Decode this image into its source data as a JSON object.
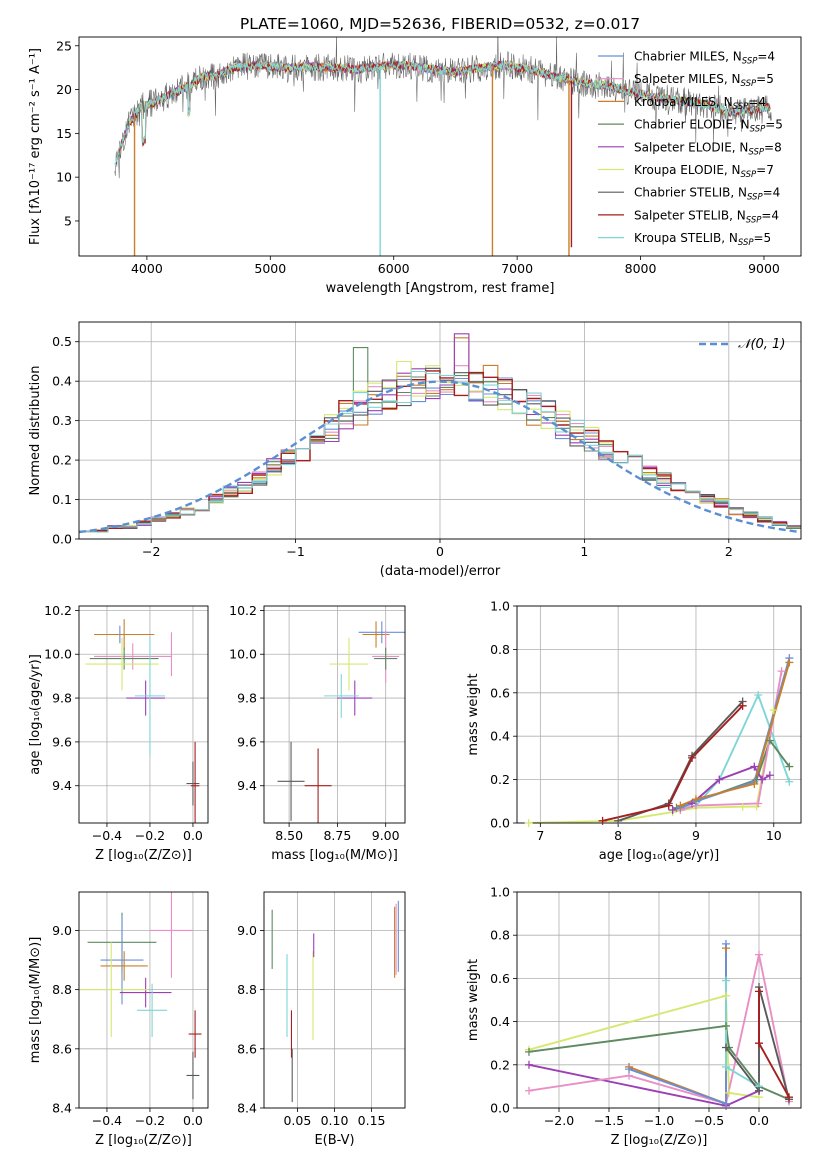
{
  "colors": {
    "Chabrier MILES": "#6b8fd6",
    "Salpeter MILES": "#e98fc5",
    "Kroupa MILES": "#c97f2a",
    "Chabrier ELODIE": "#5e8a62",
    "Salpeter ELODIE": "#9b3fb5",
    "Kroupa ELODIE": "#d6e870",
    "Chabrier STELIB": "#5a5a5a",
    "Salpeter STELIB": "#a51f1f",
    "Kroupa STELIB": "#7fd6d6",
    "normal_line": "#5b8fd4",
    "grid": "#b0b0b0"
  },
  "chart_data": [
    {
      "id": "spectrum",
      "type": "line",
      "title": "PLATE=1060, MJD=52636, FIBERID=0532, z=0.017",
      "xlabel": "wavelength [Angstrom, rest frame]",
      "ylabel": "Flux [fλ10⁻¹⁷ erg cm⁻² s⁻¹ A⁻¹]",
      "xlim": [
        3450,
        9300
      ],
      "ylim": [
        1,
        26
      ],
      "xticks": [
        "4000",
        "5000",
        "6000",
        "7000",
        "8000",
        "9000"
      ],
      "xtick_values": [
        4000,
        5000,
        6000,
        7000,
        8000,
        9000
      ],
      "yticks": [
        "5",
        "10",
        "15",
        "20",
        "25"
      ],
      "ytick_values": [
        5,
        10,
        15,
        20,
        25
      ],
      "grid": false,
      "legend_position": "top-right",
      "legend": [
        {
          "label": "Chabrier MILES, N",
          "sub": "SSP",
          "suffix": "=4",
          "color": "#6b8fd6"
        },
        {
          "label": "Salpeter MILES, N",
          "sub": "SSP",
          "suffix": "=5",
          "color": "#e98fc5"
        },
        {
          "label": "Kroupa MILES, N",
          "sub": "SSP",
          "suffix": "=4",
          "color": "#c97f2a"
        },
        {
          "label": "Chabrier ELODIE, N",
          "sub": "SSP",
          "suffix": "=5",
          "color": "#5e8a62"
        },
        {
          "label": "Salpeter ELODIE, N",
          "sub": "SSP",
          "suffix": "=8",
          "color": "#9b3fb5"
        },
        {
          "label": "Kroupa ELODIE, N",
          "sub": "SSP",
          "suffix": "=7",
          "color": "#d6e870"
        },
        {
          "label": "Chabrier STELIB, N",
          "sub": "SSP",
          "suffix": "=4",
          "color": "#5a5a5a"
        },
        {
          "label": "Salpeter STELIB, N",
          "sub": "SSP",
          "suffix": "=4",
          "color": "#a51f1f"
        },
        {
          "label": "Kroupa STELIB, N",
          "sub": "SSP",
          "suffix": "=5",
          "color": "#7fd6d6"
        }
      ],
      "continuum": {
        "x": [
          3730,
          3800,
          3850,
          3950,
          4050,
          4200,
          4350,
          4450,
          4550,
          4700,
          4900,
          5100,
          5300,
          5500,
          5700,
          5900,
          6100,
          6300,
          6500,
          6700,
          6900,
          7100,
          7300,
          7500,
          7700,
          7900,
          8100,
          8300,
          8500,
          8700,
          8900,
          9050
        ],
        "y": [
          11,
          14,
          16,
          18,
          18.5,
          19.5,
          20.5,
          21.5,
          21.5,
          22.5,
          22.8,
          22.5,
          22.6,
          22.5,
          22.3,
          22.7,
          22.8,
          22.3,
          22,
          22.5,
          22.8,
          22.3,
          21.5,
          20.8,
          20.5,
          19.8,
          19.2,
          18.8,
          18.4,
          17.5,
          17.6,
          18
        ]
      },
      "dips": [
        {
          "series": "Kroupa MILES",
          "x": 3900,
          "to": 1
        },
        {
          "series": "Kroupa MILES",
          "x": 6800,
          "to": 1
        },
        {
          "series": "Kroupa MILES",
          "x": 7420,
          "to": 1
        },
        {
          "series": "Kroupa STELIB",
          "x": 5890,
          "to": 1
        },
        {
          "series": "Salpeter STELIB",
          "x": 7440,
          "to": 2
        }
      ]
    },
    {
      "id": "residuals",
      "type": "line",
      "xlabel": "(data-model)/error",
      "ylabel": "Normed distribution",
      "xlim": [
        -2.5,
        2.5
      ],
      "ylim": [
        0,
        0.55
      ],
      "xticks": [
        "−2",
        "−1",
        "0",
        "1",
        "2"
      ],
      "xtick_values": [
        -2,
        -1,
        0,
        1,
        2
      ],
      "yticks": [
        "0.0",
        "0.1",
        "0.2",
        "0.3",
        "0.4",
        "0.5"
      ],
      "ytick_values": [
        0,
        0.1,
        0.2,
        0.3,
        0.4,
        0.5
      ],
      "grid": true,
      "legend_position": "top-right",
      "legend_label": "𝒩(0, 1)",
      "bin_edges_start": -2.5,
      "bin_width": 0.1,
      "base_hist": [
        0.02,
        0.02,
        0.03,
        0.03,
        0.04,
        0.05,
        0.06,
        0.07,
        0.08,
        0.1,
        0.12,
        0.13,
        0.15,
        0.18,
        0.2,
        0.22,
        0.25,
        0.28,
        0.31,
        0.33,
        0.35,
        0.36,
        0.38,
        0.39,
        0.4,
        0.4,
        0.4,
        0.39,
        0.38,
        0.37,
        0.35,
        0.33,
        0.31,
        0.29,
        0.27,
        0.25,
        0.23,
        0.21,
        0.19,
        0.17,
        0.15,
        0.13,
        0.11,
        0.1,
        0.09,
        0.07,
        0.06,
        0.05,
        0.04,
        0.03
      ],
      "spikes": [
        {
          "series": "Chabrier ELODIE",
          "x": -0.6,
          "y": 0.485
        },
        {
          "series": "Salpeter ELODIE",
          "x": 0.1,
          "y": 0.52
        },
        {
          "series": "Kroupa MILES",
          "x": 0.1,
          "y": 0.51
        },
        {
          "series": "Kroupa MILES",
          "x": 0.3,
          "y": 0.44
        },
        {
          "series": "Kroupa ELODIE",
          "x": -0.3,
          "y": 0.45
        }
      ]
    },
    {
      "id": "age_vs_Z",
      "type": "scatter",
      "xlabel": "Z [log₁₀(Z/Z⊙)]",
      "ylabel": "age  [log₁₀(age/yr)]",
      "xlim": [
        -0.53,
        0.07
      ],
      "ylim": [
        9.23,
        10.22
      ],
      "xticks": [
        "−0.4",
        "−0.2",
        "0.0"
      ],
      "xtick_values": [
        -0.4,
        -0.2,
        0.0
      ],
      "yticks": [
        "9.4",
        "9.6",
        "9.8",
        "10.0",
        "10.2"
      ],
      "ytick_values": [
        9.4,
        9.6,
        9.8,
        10.0,
        10.2
      ],
      "grid": true,
      "points": [
        {
          "series": "Chabrier MILES",
          "x": -0.34,
          "y": 10.09,
          "xe": 0.09,
          "ye": 0.04
        },
        {
          "series": "Kroupa MILES",
          "x": -0.32,
          "y": 10.09,
          "xe": 0.14,
          "ye": 0.07
        },
        {
          "series": "Salpeter MILES",
          "x": -0.28,
          "y": 9.99,
          "xe": 0.18,
          "ye": 0.06
        },
        {
          "series": "Chabrier ELODIE",
          "x": -0.32,
          "y": 9.98,
          "xe": 0.16,
          "ye": 0.05
        },
        {
          "series": "Kroupa ELODIE",
          "x": -0.33,
          "y": 9.955,
          "xe": 0.17,
          "ye": 0.12
        },
        {
          "series": "Salpeter ELODIE",
          "x": -0.22,
          "y": 9.8,
          "xe": 0.09,
          "ye": 0.08
        },
        {
          "series": "Kroupa STELIB",
          "x": -0.2,
          "y": 9.81,
          "xe": 0.07,
          "ye": 0.27
        },
        {
          "series": "Chabrier STELIB",
          "x": 0.0,
          "y": 9.41,
          "xe": 0.03,
          "ye": 0.1
        },
        {
          "series": "Salpeter STELIB",
          "x": 0.01,
          "y": 9.4,
          "xe": 0.02,
          "ye": 0.2
        },
        {
          "series": "Salpeter MILES",
          "x": -0.1,
          "y": 10.0,
          "xe": 0.0,
          "ye": 0.1
        }
      ]
    },
    {
      "id": "age_vs_mass",
      "type": "scatter",
      "xlabel": "mass [log₁₀(M/M⊙)]",
      "ylabel": "",
      "xlim": [
        8.37,
        9.1
      ],
      "ylim": [
        9.23,
        10.22
      ],
      "xticks": [
        "8.50",
        "8.75",
        "9.00"
      ],
      "xtick_values": [
        8.5,
        8.75,
        9.0
      ],
      "yticks": [
        "9.4",
        "9.6",
        "9.8",
        "10.0",
        "10.2"
      ],
      "ytick_values": [
        9.4,
        9.6,
        9.8,
        10.0,
        10.2
      ],
      "grid": true,
      "points": [
        {
          "series": "Chabrier MILES",
          "x": 8.98,
          "y": 10.1,
          "xe": 0.12,
          "ye": 0.05
        },
        {
          "series": "Kroupa MILES",
          "x": 8.95,
          "y": 10.09,
          "xe": 0.07,
          "ye": 0.06
        },
        {
          "series": "Salpeter MILES",
          "x": 9.0,
          "y": 9.99,
          "xe": 0.07,
          "ye": 0.12
        },
        {
          "series": "Chabrier ELODIE",
          "x": 9.0,
          "y": 9.98,
          "xe": 0.06,
          "ye": 0.05
        },
        {
          "series": "Kroupa ELODIE",
          "x": 8.81,
          "y": 9.955,
          "xe": 0.1,
          "ye": 0.12
        },
        {
          "series": "Salpeter ELODIE",
          "x": 8.84,
          "y": 9.8,
          "xe": 0.09,
          "ye": 0.08
        },
        {
          "series": "Kroupa STELIB",
          "x": 8.77,
          "y": 9.81,
          "xe": 0.09,
          "ye": 0.1
        },
        {
          "series": "Chabrier STELIB",
          "x": 8.51,
          "y": 9.42,
          "xe": 0.07,
          "ye": 0.18
        },
        {
          "series": "Salpeter STELIB",
          "x": 8.65,
          "y": 9.4,
          "xe": 0.07,
          "ye": 0.17
        }
      ]
    },
    {
      "id": "weight_vs_age",
      "type": "line",
      "xlabel": "age  [log₁₀(age/yr)]",
      "ylabel": "mass weight",
      "xlim": [
        6.7,
        10.35
      ],
      "ylim": [
        0,
        1
      ],
      "xticks": [
        "7",
        "8",
        "9",
        "10"
      ],
      "xtick_values": [
        7,
        8,
        9,
        10
      ],
      "yticks": [
        "0.0",
        "0.2",
        "0.4",
        "0.6",
        "0.8",
        "1.0"
      ],
      "ytick_values": [
        0,
        0.2,
        0.4,
        0.6,
        0.8,
        1.0
      ],
      "grid": true,
      "series": [
        {
          "name": "Kroupa ELODIE",
          "x": [
            6.85,
            8.0,
            8.7,
            9.0,
            9.6,
            9.78,
            10.0
          ],
          "y": [
            0.0,
            0.01,
            0.05,
            0.07,
            0.075,
            0.076,
            0.52
          ]
        },
        {
          "name": "Kroupa STELIB",
          "x": [
            8.7,
            9.0,
            9.3,
            9.8,
            10.2
          ],
          "y": [
            0.06,
            0.08,
            0.2,
            0.59,
            0.19
          ]
        },
        {
          "name": "Chabrier ELODIE",
          "x": [
            8.75,
            9.0,
            9.78,
            9.95,
            10.2
          ],
          "y": [
            0.07,
            0.1,
            0.2,
            0.38,
            0.26
          ]
        },
        {
          "name": "Salpeter ELODIE",
          "x": [
            8.7,
            8.95,
            9.3,
            9.75,
            9.85,
            9.95
          ],
          "y": [
            0.06,
            0.09,
            0.2,
            0.26,
            0.2,
            0.22
          ]
        },
        {
          "name": "Salpeter MILES",
          "x": [
            8.8,
            9.0,
            9.8,
            10.1
          ],
          "y": [
            0.06,
            0.08,
            0.09,
            0.7
          ]
        },
        {
          "name": "Chabrier MILES",
          "x": [
            8.8,
            9.0,
            9.75,
            10.2
          ],
          "y": [
            0.07,
            0.1,
            0.19,
            0.76
          ]
        },
        {
          "name": "Kroupa MILES",
          "x": [
            8.8,
            9.0,
            9.75,
            10.2
          ],
          "y": [
            0.08,
            0.11,
            0.18,
            0.74
          ]
        },
        {
          "name": "Chabrier STELIB",
          "x": [
            8.0,
            8.65,
            8.95,
            9.6
          ],
          "y": [
            0.01,
            0.09,
            0.31,
            0.56
          ]
        },
        {
          "name": "Salpeter STELIB",
          "x": [
            7.8,
            8.65,
            8.95,
            9.6
          ],
          "y": [
            0.01,
            0.08,
            0.3,
            0.54
          ]
        }
      ]
    },
    {
      "id": "mass_vs_Z",
      "type": "scatter",
      "xlabel": "Z [log₁₀(Z/Z⊙)]",
      "ylabel": "mass [log₁₀(M/M⊙)]",
      "xlim": [
        -0.53,
        0.07
      ],
      "ylim": [
        8.4,
        9.13
      ],
      "xticks": [
        "−0.4",
        "−0.2",
        "0.0"
      ],
      "xtick_values": [
        -0.4,
        -0.2,
        0.0
      ],
      "yticks": [
        "8.4",
        "8.6",
        "8.8",
        "9.0"
      ],
      "ytick_values": [
        8.4,
        8.6,
        8.8,
        9.0
      ],
      "grid": true,
      "points": [
        {
          "series": "Chabrier ELODIE",
          "x": -0.33,
          "y": 8.96,
          "xe": 0.16,
          "ye": 0.1
        },
        {
          "series": "Salpeter MILES",
          "x": -0.1,
          "y": 9.0,
          "xe": 0.1,
          "ye": 0.16
        },
        {
          "series": "Chabrier MILES",
          "x": -0.33,
          "y": 8.9,
          "xe": 0.1,
          "ye": 0.15
        },
        {
          "series": "Kroupa MILES",
          "x": -0.32,
          "y": 8.88,
          "xe": 0.11,
          "ye": 0.05
        },
        {
          "series": "Salpeter ELODIE",
          "x": -0.22,
          "y": 8.79,
          "xe": 0.12,
          "ye": 0.05
        },
        {
          "series": "Kroupa ELODIE",
          "x": -0.38,
          "y": 8.8,
          "xe": 0.17,
          "ye": 0.16
        },
        {
          "series": "Kroupa STELIB",
          "x": -0.19,
          "y": 8.73,
          "xe": 0.07,
          "ye": 0.09
        },
        {
          "series": "Salpeter STELIB",
          "x": 0.01,
          "y": 8.65,
          "xe": 0.03,
          "ye": 0.08
        },
        {
          "series": "Chabrier STELIB",
          "x": 0.0,
          "y": 8.51,
          "xe": 0.03,
          "ye": 0.08
        }
      ]
    },
    {
      "id": "mass_vs_ebv",
      "type": "scatter",
      "xlabel": "E(B-V)",
      "ylabel": "",
      "xlim": [
        0.005,
        0.195
      ],
      "ylim": [
        8.4,
        9.13
      ],
      "xticks": [
        "0.05",
        "0.10",
        "0.15"
      ],
      "xtick_values": [
        0.05,
        0.1,
        0.15
      ],
      "yticks": [
        "8.4",
        "8.6",
        "8.8",
        "9.0"
      ],
      "ytick_values": [
        8.4,
        8.6,
        8.8,
        9.0
      ],
      "grid": true,
      "points": [
        {
          "series": "Chabrier ELODIE",
          "x": 0.016,
          "y": 8.97,
          "xe": 0.0,
          "ye": 0.1
        },
        {
          "series": "Kroupa STELIB",
          "x": 0.036,
          "y": 8.78,
          "xe": 0.0,
          "ye": 0.14
        },
        {
          "series": "Salpeter STELIB",
          "x": 0.042,
          "y": 8.65,
          "xe": 0.0,
          "ye": 0.08
        },
        {
          "series": "Chabrier STELIB",
          "x": 0.043,
          "y": 8.51,
          "xe": 0.0,
          "ye": 0.09
        },
        {
          "series": "Kroupa ELODIE",
          "x": 0.071,
          "y": 8.78,
          "xe": 0.0,
          "ye": 0.15
        },
        {
          "series": "Salpeter ELODIE",
          "x": 0.072,
          "y": 8.95,
          "xe": 0.0,
          "ye": 0.04
        },
        {
          "series": "Kroupa MILES",
          "x": 0.181,
          "y": 8.96,
          "xe": 0.0,
          "ye": 0.12
        },
        {
          "series": "Salpeter MILES",
          "x": 0.183,
          "y": 8.97,
          "xe": 0.0,
          "ye": 0.12
        },
        {
          "series": "Chabrier MILES",
          "x": 0.186,
          "y": 8.98,
          "xe": 0.0,
          "ye": 0.12
        }
      ]
    },
    {
      "id": "weight_vs_Z",
      "type": "line",
      "xlabel": "Z [log₁₀(Z/Z⊙)]",
      "ylabel": "mass weight",
      "xlim": [
        -2.42,
        0.42
      ],
      "ylim": [
        0,
        1
      ],
      "xticks": [
        "−2.0",
        "−1.5",
        "−1.0",
        "−0.5",
        "0.0"
      ],
      "xtick_values": [
        -2,
        -1.5,
        -1,
        -0.5,
        0
      ],
      "yticks": [
        "0.0",
        "0.2",
        "0.4",
        "0.6",
        "0.8",
        "1.0"
      ],
      "ytick_values": [
        0,
        0.2,
        0.4,
        0.6,
        0.8,
        1.0
      ],
      "grid": true,
      "series": [
        {
          "name": "Kroupa ELODIE",
          "x": [
            -2.3,
            -0.33,
            -0.3,
            0.0
          ],
          "y": [
            0.27,
            0.52,
            0.07,
            0.05
          ]
        },
        {
          "name": "Chabrier ELODIE",
          "x": [
            -2.3,
            -0.33,
            -0.3,
            0.0,
            0.3
          ],
          "y": [
            0.26,
            0.38,
            0.28,
            0.1,
            0.04
          ]
        },
        {
          "name": "Salpeter ELODIE",
          "x": [
            -2.3,
            -0.33,
            0.0
          ],
          "y": [
            0.2,
            0.01,
            0.08
          ]
        },
        {
          "name": "Salpeter MILES",
          "x": [
            -2.3,
            -1.3,
            -0.33,
            0.0,
            0.3
          ],
          "y": [
            0.08,
            0.15,
            0.02,
            0.71,
            0.03
          ]
        },
        {
          "name": "Kroupa MILES",
          "x": [
            -1.3,
            -0.33,
            -0.33
          ],
          "y": [
            0.19,
            0.02,
            0.74
          ]
        },
        {
          "name": "Chabrier MILES",
          "x": [
            -1.3,
            -0.33,
            -0.33
          ],
          "y": [
            0.18,
            0.02,
            0.76
          ]
        },
        {
          "name": "Kroupa STELIB",
          "x": [
            -0.33,
            -0.33,
            0.0
          ],
          "y": [
            0.59,
            0.19,
            0.1
          ]
        },
        {
          "name": "Chabrier STELIB",
          "x": [
            -0.33,
            0.0,
            0.0,
            0.3
          ],
          "y": [
            0.28,
            0.08,
            0.56,
            0.04
          ]
        },
        {
          "name": "Salpeter STELIB",
          "x": [
            0.0,
            0.0,
            0.3
          ],
          "y": [
            0.54,
            0.3,
            0.05
          ]
        }
      ]
    }
  ]
}
